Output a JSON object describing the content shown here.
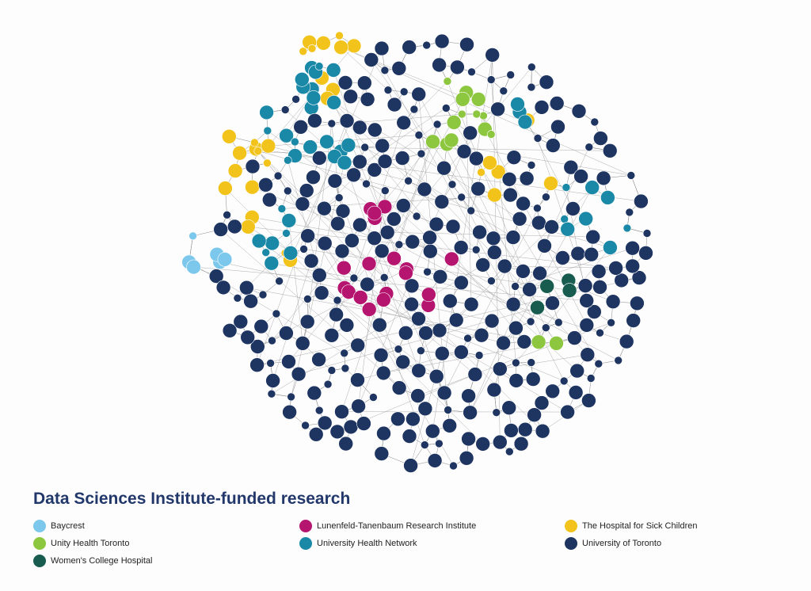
{
  "title": "Data Sciences Institute-funded research",
  "legend": [
    {
      "label": "Baycrest",
      "color": "#7cc8ec"
    },
    {
      "label": "Lunenfeld-Tanenbaum Research Institute",
      "color": "#b5146f"
    },
    {
      "label": "The Hospital for Sick Children",
      "color": "#f2c31b"
    },
    {
      "label": "Unity Health Toronto",
      "color": "#8dc63f"
    },
    {
      "label": "University Health Network",
      "color": "#1a89a8"
    },
    {
      "label": "University of Toronto",
      "color": "#1e3461"
    },
    {
      "label": "Women's College Hospital",
      "color": "#175c4f"
    }
  ]
}
